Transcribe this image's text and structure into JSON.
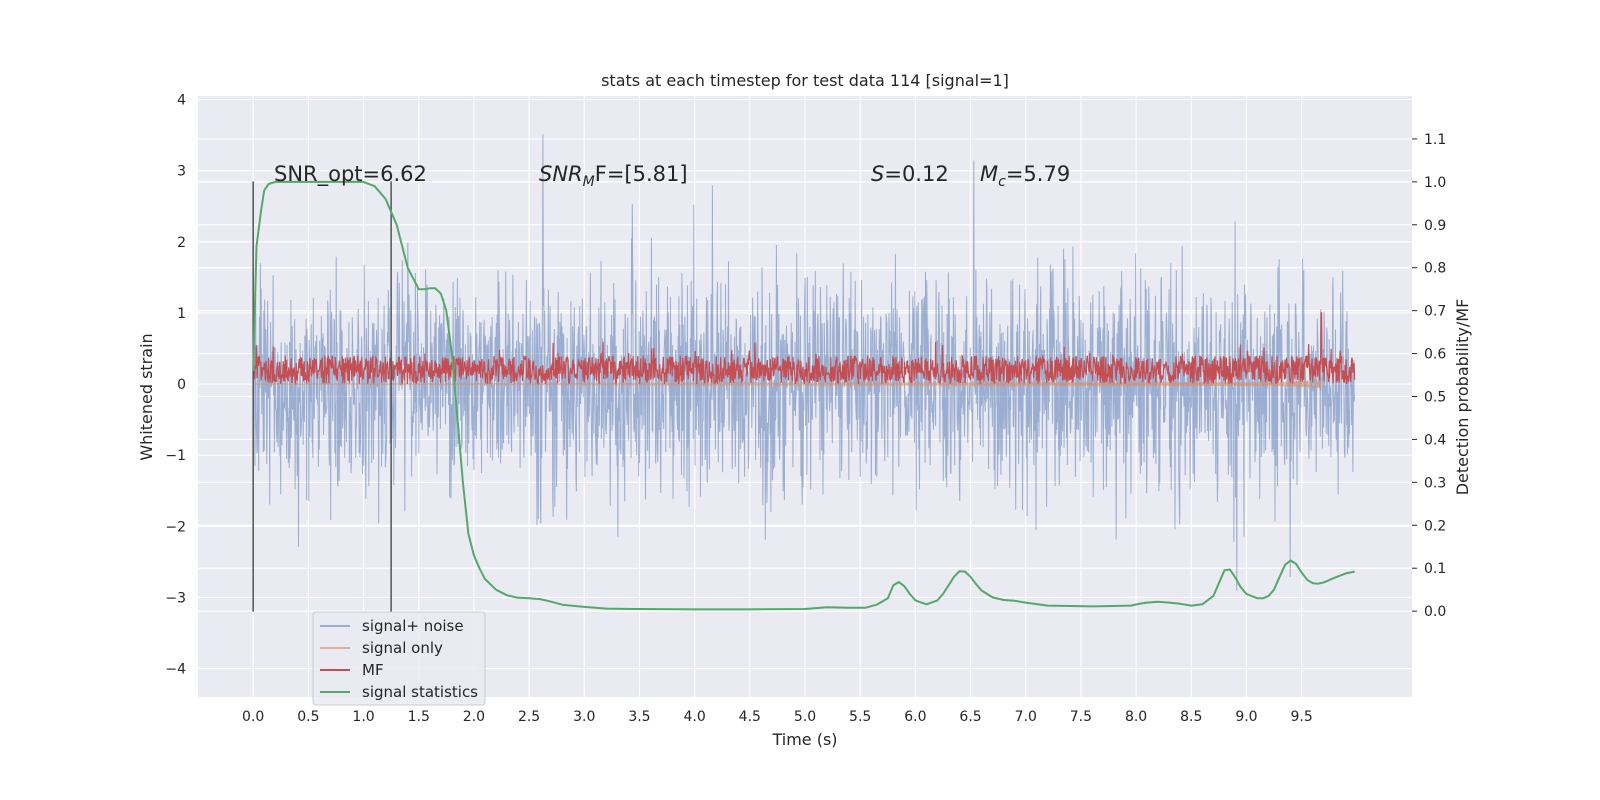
{
  "chart_data": {
    "type": "line",
    "title": "stats at each timestep for test data 114 [signal=1]",
    "xlabel": "Time (s)",
    "ylabel": "Whitened strain",
    "ylabel_right": "Detection probability/MF",
    "xlim": [
      -0.5,
      10.5
    ],
    "ylim": [
      -4.4,
      4.05
    ],
    "ylim_right": [
      -0.2,
      1.2
    ],
    "x_ticks": [
      "0.0",
      "0.5",
      "1.0",
      "1.5",
      "2.0",
      "2.5",
      "3.0",
      "3.5",
      "4.0",
      "4.5",
      "5.0",
      "5.5",
      "6.0",
      "6.5",
      "7.0",
      "7.5",
      "8.0",
      "8.5",
      "9.0",
      "9.5"
    ],
    "y_ticks": [
      "4",
      "3",
      "2",
      "1",
      "0",
      "−1",
      "−2",
      "−3",
      "−4"
    ],
    "y_ticks_right": [
      "1.1",
      "1.0",
      "0.9",
      "0.8",
      "0.7",
      "0.6",
      "0.5",
      "0.4",
      "0.3",
      "0.2",
      "0.1",
      "0.0"
    ],
    "grid": true,
    "legend_position": "lower-left",
    "colors": {
      "noise": "#4c72b0",
      "signal": "#dd8452",
      "mf": "#c44e52",
      "stat": "#55a868",
      "background": "#eaeaf2",
      "grid": "#ffffff"
    },
    "annotations": {
      "snr_opt": "SNR_opt=6.62",
      "snr_mf_sym": "SNR",
      "snr_mf_sub": "M",
      "snr_mf_rest": "F=[5.81]",
      "s_sym": "S",
      "s_rest": "=0.12",
      "mc_sym": "M",
      "mc_sub": "c",
      "mc_rest": "=5.79"
    },
    "vertical_lines_x": [
      0.0,
      1.25
    ],
    "series": [
      {
        "name": "signal+ noise",
        "axis": "left",
        "style": "noise band",
        "t_range": [
          0.0,
          9.98
        ],
        "envelope_approx": [
          -2.6,
          2.6
        ]
      },
      {
        "name": "signal only",
        "axis": "left",
        "style": "chirp",
        "t_range": [
          0.0,
          9.68
        ],
        "peak_amplitude_approx": 0.6
      },
      {
        "name": "MF",
        "axis": "left",
        "style": "noise band",
        "t_range": [
          0.0,
          9.98
        ],
        "band_approx": [
          0.0,
          0.4
        ],
        "peak": {
          "x": 9.68,
          "y": 1.0
        }
      },
      {
        "name": "signal statistics",
        "axis": "right",
        "x": [
          0.0,
          0.03,
          0.07,
          0.1,
          0.14,
          0.2,
          0.3,
          0.5,
          0.7,
          0.9,
          1.0,
          1.1,
          1.2,
          1.3,
          1.4,
          1.5,
          1.55,
          1.6,
          1.65,
          1.7,
          1.75,
          1.8,
          1.85,
          1.9,
          1.95,
          2.0,
          2.05,
          2.1,
          2.2,
          2.3,
          2.4,
          2.5,
          2.6,
          2.7,
          2.8,
          3.0,
          3.2,
          3.5,
          4.0,
          4.5,
          5.0,
          5.2,
          5.4,
          5.55,
          5.65,
          5.75,
          5.8,
          5.85,
          5.9,
          5.95,
          6.0,
          6.1,
          6.2,
          6.25,
          6.3,
          6.35,
          6.4,
          6.45,
          6.5,
          6.55,
          6.6,
          6.7,
          6.8,
          6.9,
          7.0,
          7.2,
          7.4,
          7.6,
          7.8,
          7.95,
          8.05,
          8.1,
          8.2,
          8.3,
          8.4,
          8.5,
          8.6,
          8.7,
          8.75,
          8.8,
          8.85,
          8.9,
          8.95,
          9.0,
          9.1,
          9.15,
          9.2,
          9.25,
          9.3,
          9.35,
          9.4,
          9.45,
          9.5,
          9.55,
          9.6,
          9.65,
          9.7,
          9.8,
          9.9,
          9.98
        ],
        "y": [
          0.56,
          0.85,
          0.93,
          0.98,
          0.995,
          1.0,
          1.0,
          1.0,
          1.0,
          1.0,
          1.0,
          0.99,
          0.96,
          0.9,
          0.8,
          0.75,
          0.75,
          0.752,
          0.752,
          0.74,
          0.7,
          0.6,
          0.45,
          0.3,
          0.18,
          0.13,
          0.1,
          0.075,
          0.05,
          0.037,
          0.031,
          0.03,
          0.028,
          0.022,
          0.015,
          0.01,
          0.006,
          0.005,
          0.004,
          0.004,
          0.005,
          0.009,
          0.008,
          0.008,
          0.015,
          0.03,
          0.06,
          0.068,
          0.058,
          0.04,
          0.025,
          0.016,
          0.025,
          0.04,
          0.06,
          0.08,
          0.093,
          0.092,
          0.08,
          0.063,
          0.048,
          0.032,
          0.026,
          0.024,
          0.02,
          0.013,
          0.012,
          0.011,
          0.012,
          0.013,
          0.018,
          0.02,
          0.022,
          0.02,
          0.017,
          0.013,
          0.016,
          0.035,
          0.065,
          0.095,
          0.097,
          0.078,
          0.055,
          0.04,
          0.03,
          0.03,
          0.035,
          0.05,
          0.08,
          0.108,
          0.118,
          0.11,
          0.09,
          0.073,
          0.065,
          0.064,
          0.067,
          0.078,
          0.088,
          0.092
        ]
      }
    ]
  }
}
